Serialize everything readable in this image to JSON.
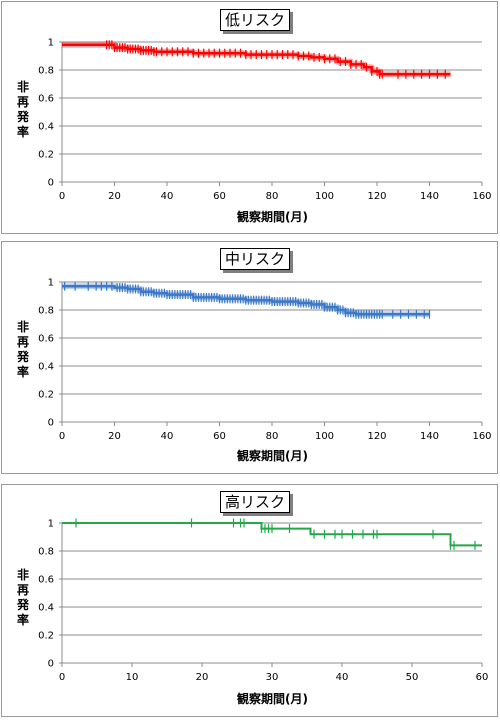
{
  "chart_data": [
    {
      "type": "line",
      "title": "低リスク",
      "xlabel": "観察期間(月)",
      "ylabel": "非再発率",
      "xlim": [
        0,
        160
      ],
      "ylim": [
        0,
        1
      ],
      "xticks": [
        0,
        20,
        40,
        60,
        80,
        100,
        120,
        140,
        160
      ],
      "yticks": [
        0,
        0.2,
        0.4,
        0.6,
        0.8,
        1
      ],
      "ytick_labels": [
        "0",
        "0.2",
        "0.4",
        "0.6",
        "0.8",
        "1"
      ],
      "grid": true,
      "series": [
        {
          "color": "#ff0000",
          "x": [
            0,
            17,
            20,
            25,
            30,
            35,
            40,
            50,
            60,
            70,
            80,
            90,
            95,
            100,
            105,
            110,
            115,
            118,
            121,
            148
          ],
          "y": [
            0.98,
            0.98,
            0.96,
            0.95,
            0.94,
            0.93,
            0.93,
            0.92,
            0.92,
            0.91,
            0.91,
            0.9,
            0.89,
            0.88,
            0.86,
            0.84,
            0.82,
            0.79,
            0.77,
            0.77
          ],
          "censor_x": [
            17,
            18,
            19,
            20,
            21,
            22,
            23,
            24,
            25,
            26,
            27,
            28,
            29,
            30,
            31,
            32,
            33,
            34,
            35,
            36,
            38,
            40,
            42,
            44,
            46,
            48,
            50,
            52,
            54,
            56,
            58,
            60,
            62,
            64,
            66,
            68,
            70,
            72,
            74,
            76,
            78,
            80,
            82,
            84,
            86,
            88,
            90,
            92,
            94,
            96,
            98,
            100,
            102,
            104,
            106,
            108,
            110,
            112,
            114,
            116,
            118,
            120,
            121,
            122,
            128,
            131,
            134,
            137,
            140,
            143,
            146
          ]
        }
      ]
    },
    {
      "type": "line",
      "title": "中リスク",
      "xlabel": "観察期間(月)",
      "ylabel": "非再発率",
      "xlim": [
        0,
        160
      ],
      "ylim": [
        0,
        1
      ],
      "xticks": [
        0,
        20,
        40,
        60,
        80,
        100,
        120,
        140,
        160
      ],
      "yticks": [
        0,
        0.2,
        0.4,
        0.6,
        0.8,
        1
      ],
      "ytick_labels": [
        "0",
        "0.2",
        "0.4",
        "0.6",
        "0.8",
        "1"
      ],
      "grid": true,
      "series": [
        {
          "color": "#3c78c8",
          "x": [
            0,
            12,
            20,
            25,
            30,
            35,
            40,
            50,
            60,
            70,
            80,
            90,
            95,
            100,
            105,
            108,
            112,
            118,
            122,
            140
          ],
          "y": [
            0.97,
            0.97,
            0.96,
            0.95,
            0.93,
            0.92,
            0.91,
            0.89,
            0.88,
            0.87,
            0.86,
            0.85,
            0.84,
            0.82,
            0.8,
            0.78,
            0.77,
            0.77,
            0.77,
            0.77
          ],
          "censor_x": [
            1,
            5,
            10,
            13,
            15,
            17,
            19,
            21,
            22,
            23,
            24,
            25,
            26,
            27,
            28,
            29,
            30,
            31,
            32,
            33,
            34,
            35,
            36,
            37,
            38,
            39,
            40,
            41,
            42,
            43,
            44,
            45,
            46,
            47,
            48,
            49,
            50,
            51,
            52,
            53,
            54,
            55,
            56,
            57,
            58,
            59,
            60,
            61,
            62,
            63,
            64,
            65,
            66,
            67,
            68,
            69,
            70,
            71,
            72,
            73,
            74,
            75,
            76,
            77,
            78,
            79,
            80,
            81,
            82,
            83,
            84,
            85,
            86,
            87,
            88,
            89,
            90,
            91,
            92,
            93,
            94,
            95,
            96,
            97,
            98,
            99,
            100,
            101,
            102,
            103,
            104,
            105,
            106,
            107,
            108,
            109,
            110,
            111,
            112,
            113,
            114,
            115,
            116,
            117,
            118,
            119,
            120,
            121,
            122,
            126,
            129,
            132,
            135,
            138,
            140
          ]
        }
      ]
    },
    {
      "type": "line",
      "title": "高リスク",
      "xlabel": "観察期間(月)",
      "ylabel": "非再発率",
      "xlim": [
        0,
        60
      ],
      "ylim": [
        0,
        1
      ],
      "xticks": [
        0,
        10,
        20,
        30,
        40,
        50,
        60
      ],
      "yticks": [
        0,
        0.2,
        0.4,
        0.6,
        0.8,
        1
      ],
      "ytick_labels": [
        "0",
        "0.2",
        "0.4",
        "0.6",
        "0.8",
        "1"
      ],
      "grid": true,
      "series": [
        {
          "color": "#22a846",
          "x": [
            0,
            28.5,
            28.5,
            35.5,
            35.5,
            55.5,
            55.5,
            60
          ],
          "y": [
            1,
            1,
            0.96,
            0.96,
            0.92,
            0.92,
            0.84,
            0.84
          ],
          "censor_x": [
            2,
            18.5,
            24.5,
            25.5,
            26,
            28.5,
            29,
            29.5,
            30,
            32.5,
            36,
            37.5,
            39,
            40,
            41.5,
            43,
            44.5,
            45,
            53,
            55.5,
            56,
            59
          ]
        }
      ]
    }
  ]
}
